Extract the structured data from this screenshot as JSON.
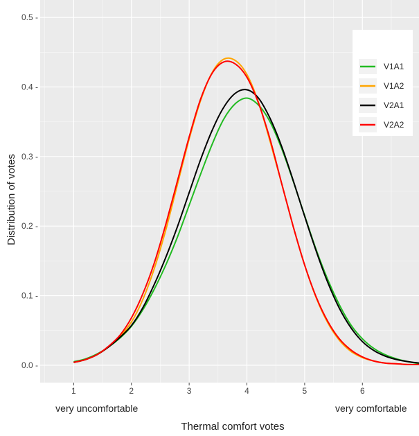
{
  "chart_data": {
    "type": "line",
    "title": "",
    "xlabel": "Thermal comfort votes",
    "ylabel": "Distribution of votes",
    "xlim": [
      0.42,
      6.98
    ],
    "ylim": [
      -0.025,
      0.525
    ],
    "x_ticks": [
      1,
      2,
      3,
      4,
      5,
      6
    ],
    "y_ticks": [
      0.0,
      0.1,
      0.2,
      0.3,
      0.4,
      0.5
    ],
    "x_tick_labels": [
      "1",
      "2",
      "3",
      "4",
      "5",
      "6"
    ],
    "y_tick_labels": [
      "0.0 -",
      "0.1 -",
      "0.2 -",
      "0.3 -",
      "0.4 -",
      "0.5 -"
    ],
    "x_annotations": [
      {
        "text": "very uncomfortable",
        "x": 1.4
      },
      {
        "text": "very comfortable",
        "x": 6.15
      }
    ],
    "grid": true,
    "background": "#ebebeb",
    "grid_color": "#ffffff",
    "legend_position": "top-right",
    "x": [
      1.0,
      1.2,
      1.4,
      1.6,
      1.8,
      2.0,
      2.2,
      2.4,
      2.6,
      2.8,
      3.0,
      3.2,
      3.4,
      3.6,
      3.8,
      4.0,
      4.2,
      4.4,
      4.6,
      4.8,
      5.0,
      5.2,
      5.4,
      5.6,
      5.8,
      6.0,
      6.2,
      6.4,
      6.6,
      6.8,
      7.0
    ],
    "series": [
      {
        "name": "V1A1",
        "color": "#22bb22",
        "values": [
          0.005,
          0.009,
          0.016,
          0.026,
          0.039,
          0.056,
          0.08,
          0.11,
          0.145,
          0.185,
          0.23,
          0.275,
          0.318,
          0.354,
          0.376,
          0.384,
          0.374,
          0.35,
          0.312,
          0.265,
          0.215,
          0.166,
          0.123,
          0.087,
          0.058,
          0.038,
          0.024,
          0.015,
          0.009,
          0.005,
          0.002
        ]
      },
      {
        "name": "V1A2",
        "color": "#ffa500",
        "values": [
          0.004,
          0.008,
          0.015,
          0.026,
          0.041,
          0.062,
          0.095,
          0.14,
          0.196,
          0.261,
          0.325,
          0.381,
          0.421,
          0.44,
          0.438,
          0.418,
          0.378,
          0.322,
          0.262,
          0.2,
          0.144,
          0.097,
          0.061,
          0.036,
          0.02,
          0.011,
          0.006,
          0.003,
          0.002,
          0.001,
          0.001
        ]
      },
      {
        "name": "V2A1",
        "color": "#000000",
        "values": [
          0.004,
          0.008,
          0.015,
          0.026,
          0.04,
          0.057,
          0.083,
          0.117,
          0.156,
          0.2,
          0.248,
          0.296,
          0.338,
          0.371,
          0.391,
          0.396,
          0.384,
          0.355,
          0.315,
          0.266,
          0.214,
          0.164,
          0.119,
          0.082,
          0.054,
          0.034,
          0.021,
          0.013,
          0.008,
          0.005,
          0.003
        ]
      },
      {
        "name": "V2A2",
        "color": "#ff0000",
        "values": [
          0.004,
          0.008,
          0.015,
          0.027,
          0.043,
          0.068,
          0.103,
          0.148,
          0.204,
          0.266,
          0.328,
          0.383,
          0.42,
          0.436,
          0.433,
          0.414,
          0.377,
          0.325,
          0.262,
          0.2,
          0.144,
          0.098,
          0.063,
          0.038,
          0.022,
          0.012,
          0.006,
          0.003,
          0.002,
          0.001,
          0.001
        ]
      }
    ]
  }
}
